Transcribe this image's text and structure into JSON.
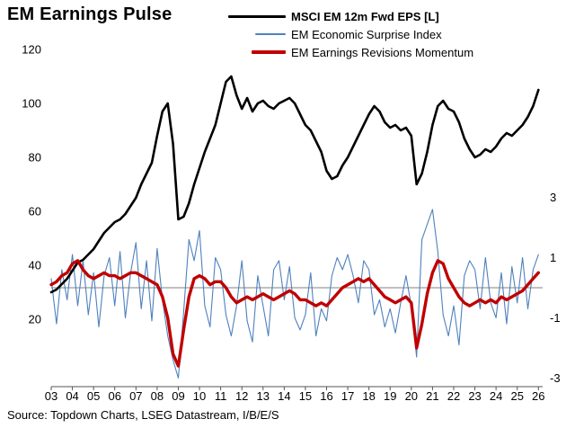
{
  "title": "EM Earnings Pulse",
  "source": "Source: Topdown Charts, LSEG Datastream, I/B/E/S",
  "colors": {
    "eps": "#000000",
    "surprise": "#4f81bd",
    "momentum": "#c00000",
    "zero_line": "#808080",
    "axis": "#555555"
  },
  "legend": [
    {
      "label": "MSCI EM 12m Fwd EPS [L]",
      "color": "#000000",
      "thickness": 3,
      "weight": "bold"
    },
    {
      "label": "EM Economic Surprise Index",
      "color": "#4f81bd",
      "thickness": 1.5,
      "weight": "normal"
    },
    {
      "label": "EM Earnings Revisions Momentum",
      "color": "#c00000",
      "thickness": 4,
      "weight": "normal"
    }
  ],
  "chart_data": {
    "type": "line",
    "title": "EM Earnings Pulse",
    "x_start": 2003,
    "x_step": 0.25,
    "x_tick_labels": [
      "03",
      "04",
      "05",
      "06",
      "07",
      "08",
      "09",
      "10",
      "11",
      "12",
      "13",
      "14",
      "15",
      "16",
      "17",
      "18",
      "19",
      "20",
      "21",
      "22",
      "23",
      "24",
      "25",
      "26"
    ],
    "left_axis": {
      "ticks": [
        120,
        100,
        80,
        60,
        40,
        20
      ],
      "label": ""
    },
    "right_axis": {
      "ticks": [
        3,
        1,
        -1,
        -3
      ],
      "zero_line": 0,
      "label": ""
    },
    "series": [
      {
        "key": "eps-line",
        "name": "MSCI EM 12m Fwd EPS [L]",
        "axis": "left",
        "color": "#000000",
        "width": 2.6,
        "values": [
          30,
          31,
          33,
          35,
          38,
          41,
          42,
          44,
          46,
          49,
          52,
          54,
          56,
          57,
          59,
          62,
          65,
          70,
          74,
          78,
          88,
          97,
          100,
          85,
          57,
          58,
          63,
          70,
          76,
          82,
          87,
          92,
          100,
          108,
          110,
          103,
          98,
          102,
          97,
          100,
          101,
          99,
          98,
          100,
          101,
          102,
          100,
          96,
          92,
          90,
          86,
          82,
          75,
          72,
          73,
          77,
          80,
          84,
          88,
          92,
          96,
          99,
          97,
          93,
          91,
          92,
          90,
          91,
          88,
          70,
          74,
          82,
          92,
          99,
          101,
          98,
          97,
          93,
          87,
          83,
          80,
          81,
          83,
          82,
          84,
          87,
          89,
          88,
          90,
          92,
          95,
          99,
          105
        ]
      },
      {
        "key": "surprise-line",
        "name": "EM Economic Surprise Index",
        "axis": "right",
        "color": "#4f81bd",
        "width": 1.1,
        "values": [
          0.3,
          -1.2,
          0.6,
          -0.4,
          1.1,
          -0.6,
          0.9,
          -0.9,
          0.5,
          -1.3,
          0.4,
          1.0,
          -0.6,
          1.2,
          -1.0,
          0.5,
          1.5,
          -0.7,
          0.9,
          -1.1,
          1.3,
          -0.4,
          -1.6,
          -2.4,
          -3.0,
          -0.8,
          1.6,
          0.9,
          1.9,
          -0.6,
          -1.3,
          1.0,
          0.6,
          -0.9,
          -1.6,
          -0.6,
          0.9,
          -1.1,
          -1.8,
          0.4,
          -0.6,
          -1.6,
          0.6,
          0.9,
          -0.4,
          0.7,
          -1.0,
          -1.4,
          -0.9,
          0.5,
          -1.6,
          -0.7,
          -1.1,
          0.4,
          1.0,
          0.6,
          1.1,
          0.4,
          -0.5,
          0.9,
          0.6,
          -0.9,
          -0.4,
          -1.3,
          -0.7,
          -1.5,
          -0.5,
          0.4,
          -0.6,
          -2.3,
          1.6,
          2.1,
          2.6,
          1.2,
          -0.9,
          -1.6,
          -0.6,
          -1.9,
          0.4,
          0.9,
          0.6,
          -0.7,
          1.0,
          -0.5,
          -1.0,
          0.5,
          -1.2,
          0.7,
          -0.5,
          1.0,
          -0.7,
          0.6,
          1.1
        ]
      },
      {
        "key": "momentum-line",
        "name": "EM Earnings Revisions Momentum",
        "axis": "right",
        "color": "#c00000",
        "width": 3.4,
        "values": [
          0.1,
          0.2,
          0.4,
          0.5,
          0.8,
          0.9,
          0.6,
          0.4,
          0.3,
          0.4,
          0.5,
          0.4,
          0.4,
          0.3,
          0.4,
          0.5,
          0.5,
          0.4,
          0.3,
          0.2,
          0.1,
          -0.3,
          -1.0,
          -2.2,
          -2.6,
          -1.4,
          -0.3,
          0.3,
          0.4,
          0.3,
          0.1,
          0.2,
          0.2,
          0.0,
          -0.3,
          -0.5,
          -0.4,
          -0.3,
          -0.4,
          -0.3,
          -0.2,
          -0.3,
          -0.4,
          -0.3,
          -0.2,
          -0.1,
          -0.2,
          -0.4,
          -0.4,
          -0.5,
          -0.6,
          -0.5,
          -0.6,
          -0.4,
          -0.2,
          0.0,
          0.1,
          0.2,
          0.3,
          0.2,
          0.3,
          0.1,
          -0.1,
          -0.3,
          -0.4,
          -0.5,
          -0.4,
          -0.3,
          -0.5,
          -2.0,
          -1.2,
          -0.2,
          0.5,
          0.9,
          0.8,
          0.3,
          0.0,
          -0.3,
          -0.5,
          -0.6,
          -0.5,
          -0.4,
          -0.5,
          -0.4,
          -0.5,
          -0.3,
          -0.4,
          -0.3,
          -0.2,
          -0.1,
          0.1,
          0.3,
          0.5
        ]
      }
    ]
  }
}
